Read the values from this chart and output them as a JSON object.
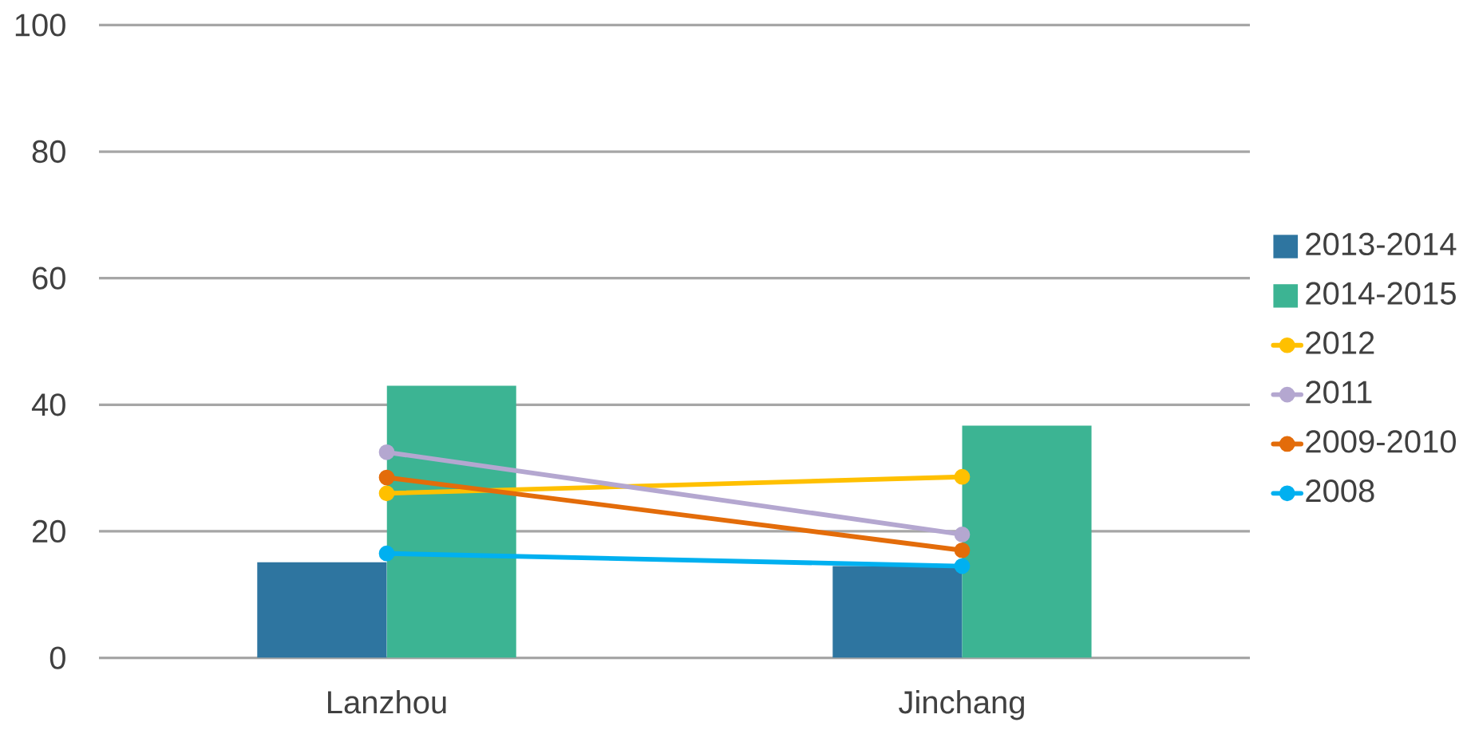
{
  "chart_data": {
    "type": "bar",
    "categories": [
      "Lanzhou",
      "Jinchang"
    ],
    "series": [
      {
        "name": "2013-2014",
        "color": "#2e75a0",
        "values": [
          15.1,
          14.5
        ]
      },
      {
        "name": "2014-2015",
        "color": "#3cb493",
        "values": [
          43.0,
          36.7
        ]
      },
      {
        "name": "2012",
        "type": "line",
        "color": "#ffc000",
        "values": [
          26.0,
          28.6
        ]
      },
      {
        "name": "2011",
        "type": "line",
        "color": "#b4a7d0",
        "values": [
          32.5,
          19.5
        ]
      },
      {
        "name": "2009-2010",
        "type": "line",
        "color": "#e36c0a",
        "values": [
          28.5,
          17.0
        ]
      },
      {
        "name": "2008",
        "type": "line",
        "color": "#00b0f0",
        "values": [
          16.5,
          14.5
        ]
      }
    ],
    "ylim": [
      0,
      100
    ],
    "yticks": [
      0,
      20,
      40,
      60,
      80,
      100
    ],
    "grid": "y",
    "legend": "right",
    "marker": "circle",
    "line_style": "solid"
  }
}
